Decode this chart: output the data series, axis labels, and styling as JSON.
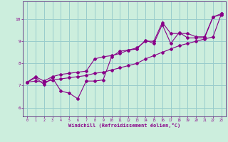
{
  "xlabel": "Windchill (Refroidissement éolien,°C)",
  "bg_color": "#cceedd",
  "line_color": "#880088",
  "grid_color": "#99cccc",
  "axis_label_bg": "#440066",
  "xlim": [
    -0.5,
    23.5
  ],
  "ylim": [
    5.6,
    10.8
  ],
  "xticks": [
    0,
    1,
    2,
    3,
    4,
    5,
    6,
    7,
    8,
    9,
    10,
    11,
    12,
    13,
    14,
    15,
    16,
    17,
    18,
    19,
    20,
    21,
    22,
    23
  ],
  "yticks": [
    6,
    7,
    8,
    9,
    10
  ],
  "series": [
    [
      7.15,
      7.35,
      7.05,
      7.35,
      6.75,
      6.65,
      6.4,
      7.2,
      7.2,
      7.25,
      8.3,
      8.55,
      8.6,
      8.65,
      9.05,
      8.9,
      9.75,
      8.9,
      9.4,
      9.15,
      9.15,
      9.15,
      10.1,
      10.2
    ],
    [
      7.15,
      7.4,
      7.2,
      7.4,
      7.5,
      7.55,
      7.6,
      7.65,
      8.2,
      8.3,
      8.35,
      8.45,
      8.6,
      8.7,
      9.0,
      9.0,
      9.85,
      9.35,
      9.35,
      9.35,
      9.2,
      9.2,
      10.1,
      10.25
    ],
    [
      7.15,
      7.2,
      7.15,
      7.25,
      7.3,
      7.35,
      7.4,
      7.45,
      7.55,
      7.6,
      7.7,
      7.8,
      7.9,
      8.0,
      8.2,
      8.35,
      8.5,
      8.65,
      8.8,
      8.9,
      9.0,
      9.1,
      9.2,
      10.25
    ]
  ]
}
